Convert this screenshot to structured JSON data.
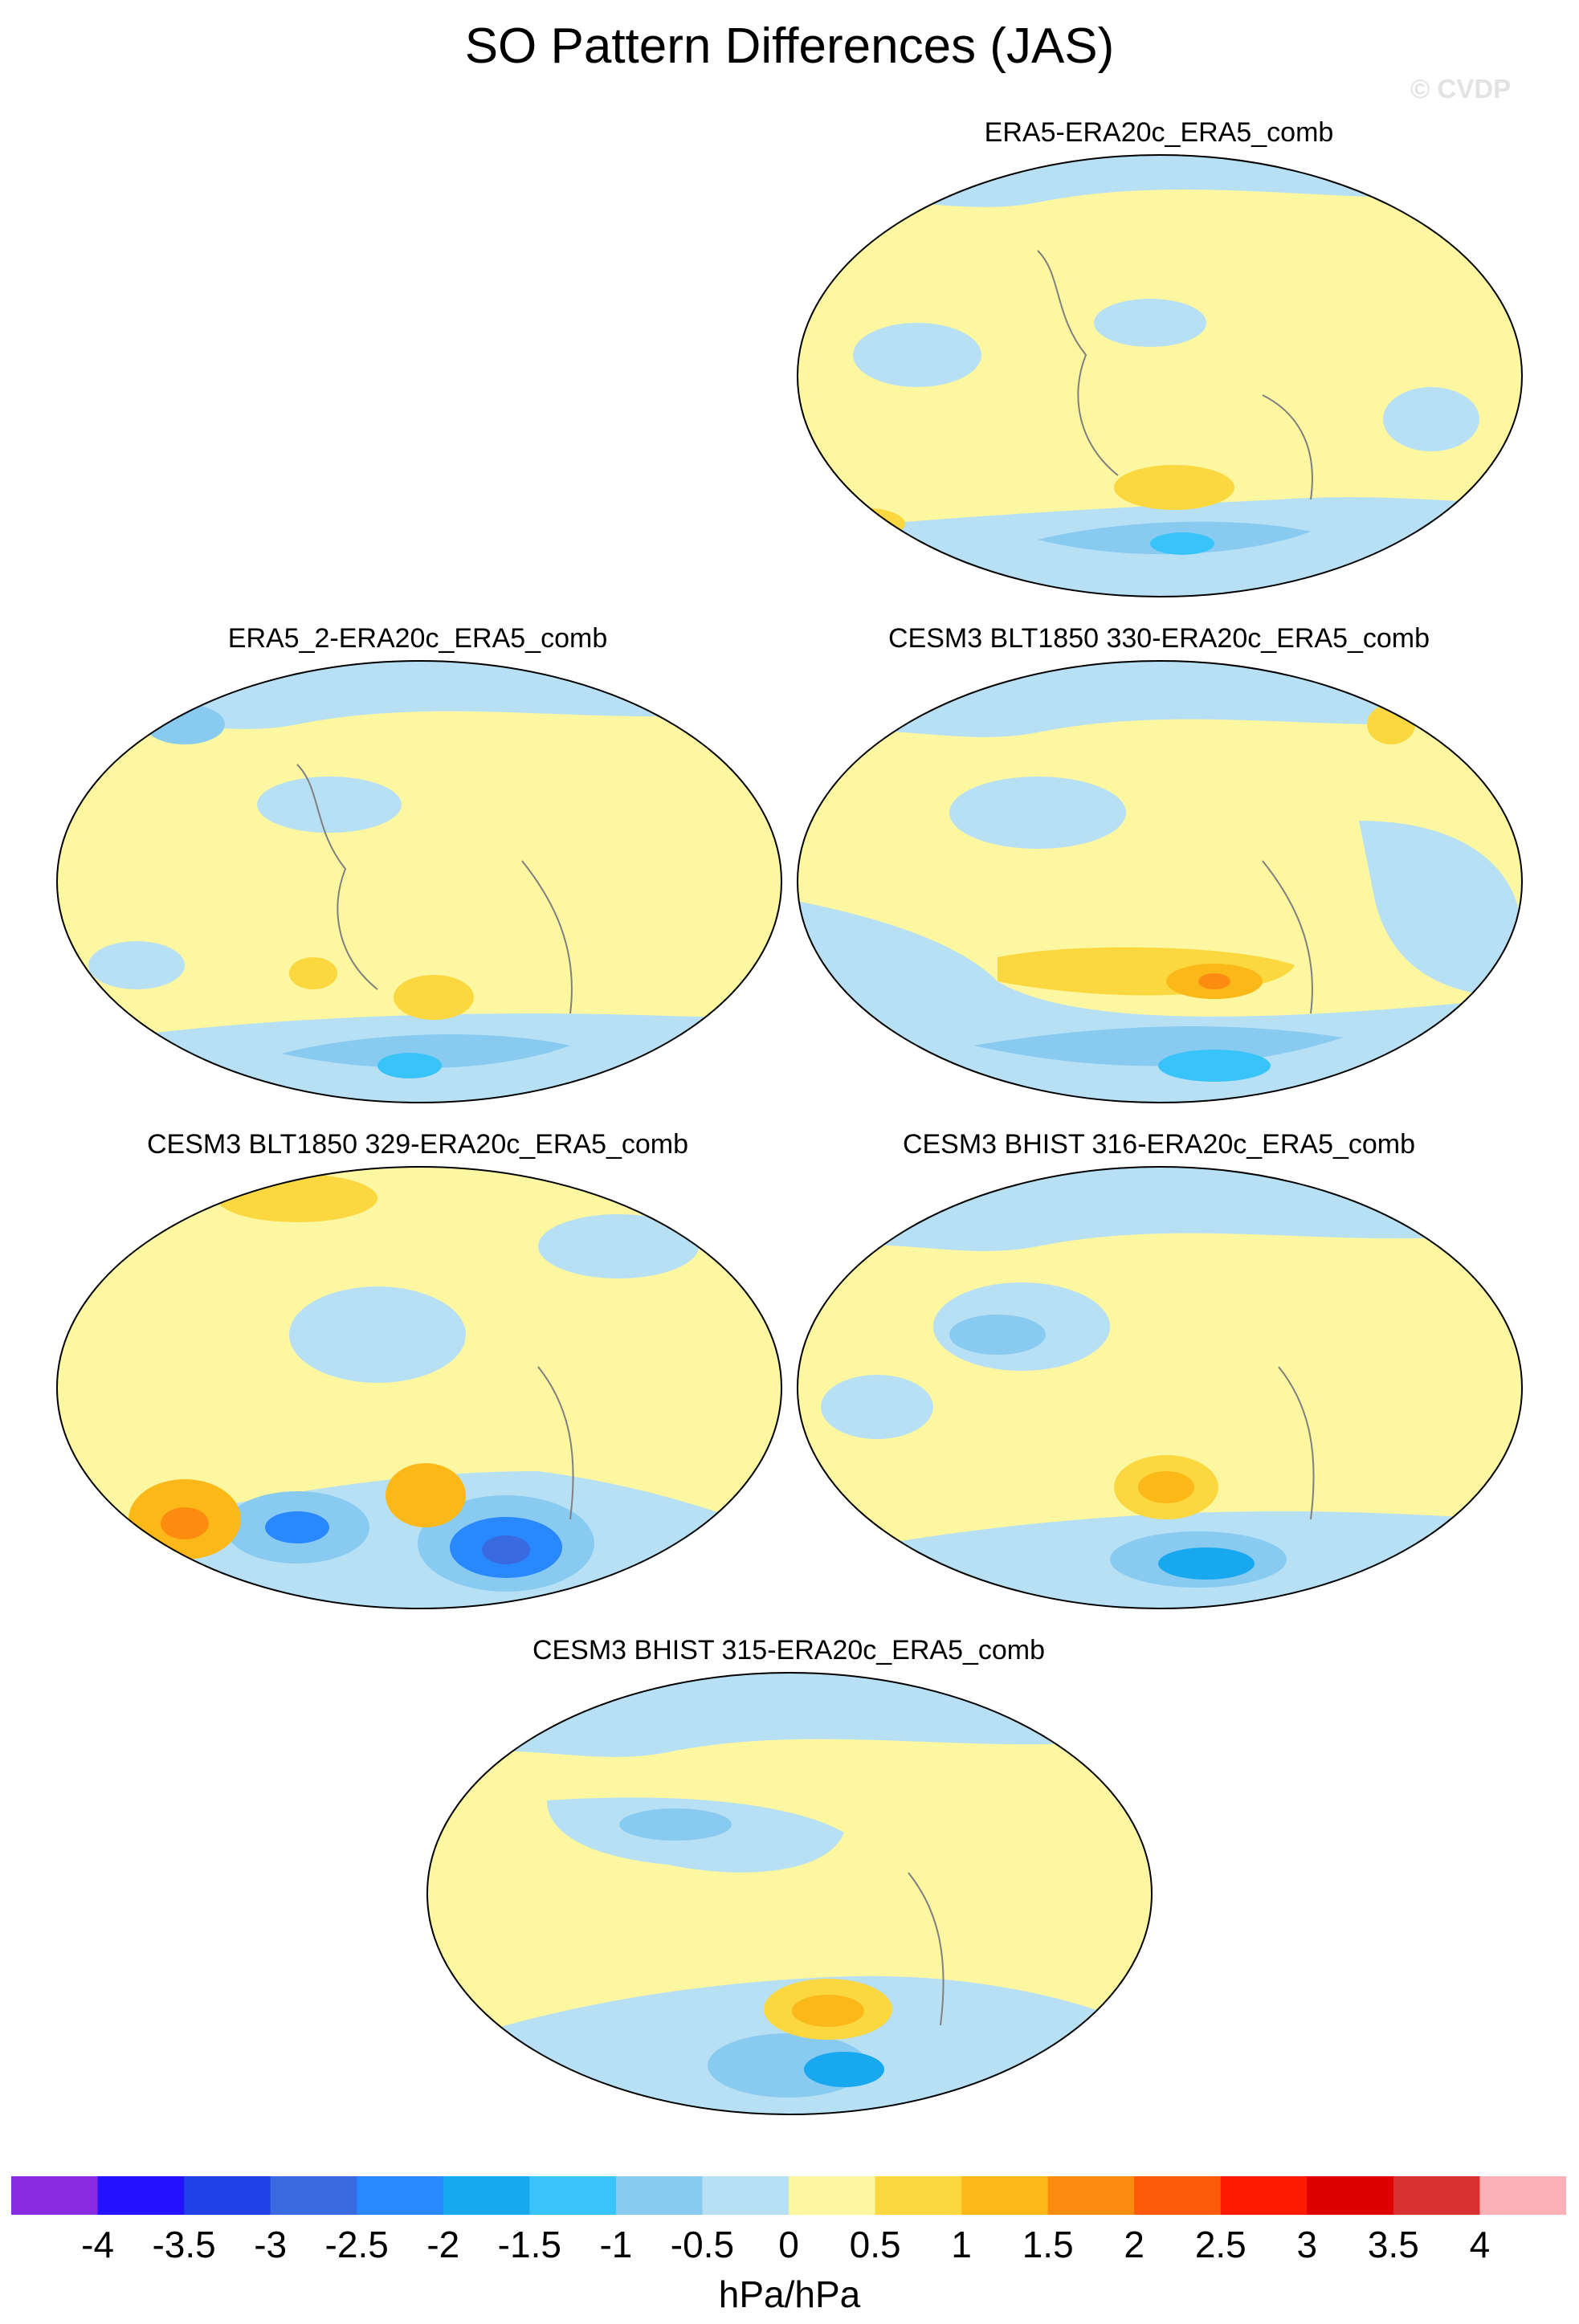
{
  "title": "SO Pattern Differences (JAS)",
  "watermark": "© CVDP",
  "units": "hPa/hPa",
  "colors": {
    "background": "#fcf7a0",
    "coast": "#808080",
    "levels": [
      "#8a2be2",
      "#2412ff",
      "#2040e8",
      "#3a6ae0",
      "#2a88ff",
      "#18a8f0",
      "#38c4f8",
      "#88caf0",
      "#b8e0f4",
      "#fcf7a0",
      "#fcd840",
      "#fcb818",
      "#fc8c10",
      "#fc5a08",
      "#fc1a00",
      "#dc0000",
      "#d83030",
      "#fcb0b8"
    ]
  },
  "colorbar": {
    "labels": [
      "-4",
      "-3.5",
      "-3",
      "-2.5",
      "-2",
      "-1.5",
      "-1",
      "-0.5",
      "0",
      "0.5",
      "1",
      "1.5",
      "2",
      "2.5",
      "3",
      "3.5",
      "4"
    ]
  },
  "panels": [
    {
      "label": "ERA5-ERA20c_ERA5_comb"
    },
    {
      "label": "ERA5_2-ERA20c_ERA5_comb"
    },
    {
      "label": "CESM3 BLT1850 330-ERA20c_ERA5_comb"
    },
    {
      "label": "CESM3 BLT1850 329-ERA20c_ERA5_comb"
    },
    {
      "label": "CESM3 BHIST 316-ERA20c_ERA5_comb"
    },
    {
      "label": "CESM3 BHIST 315-ERA20c_ERA5_comb"
    }
  ]
}
